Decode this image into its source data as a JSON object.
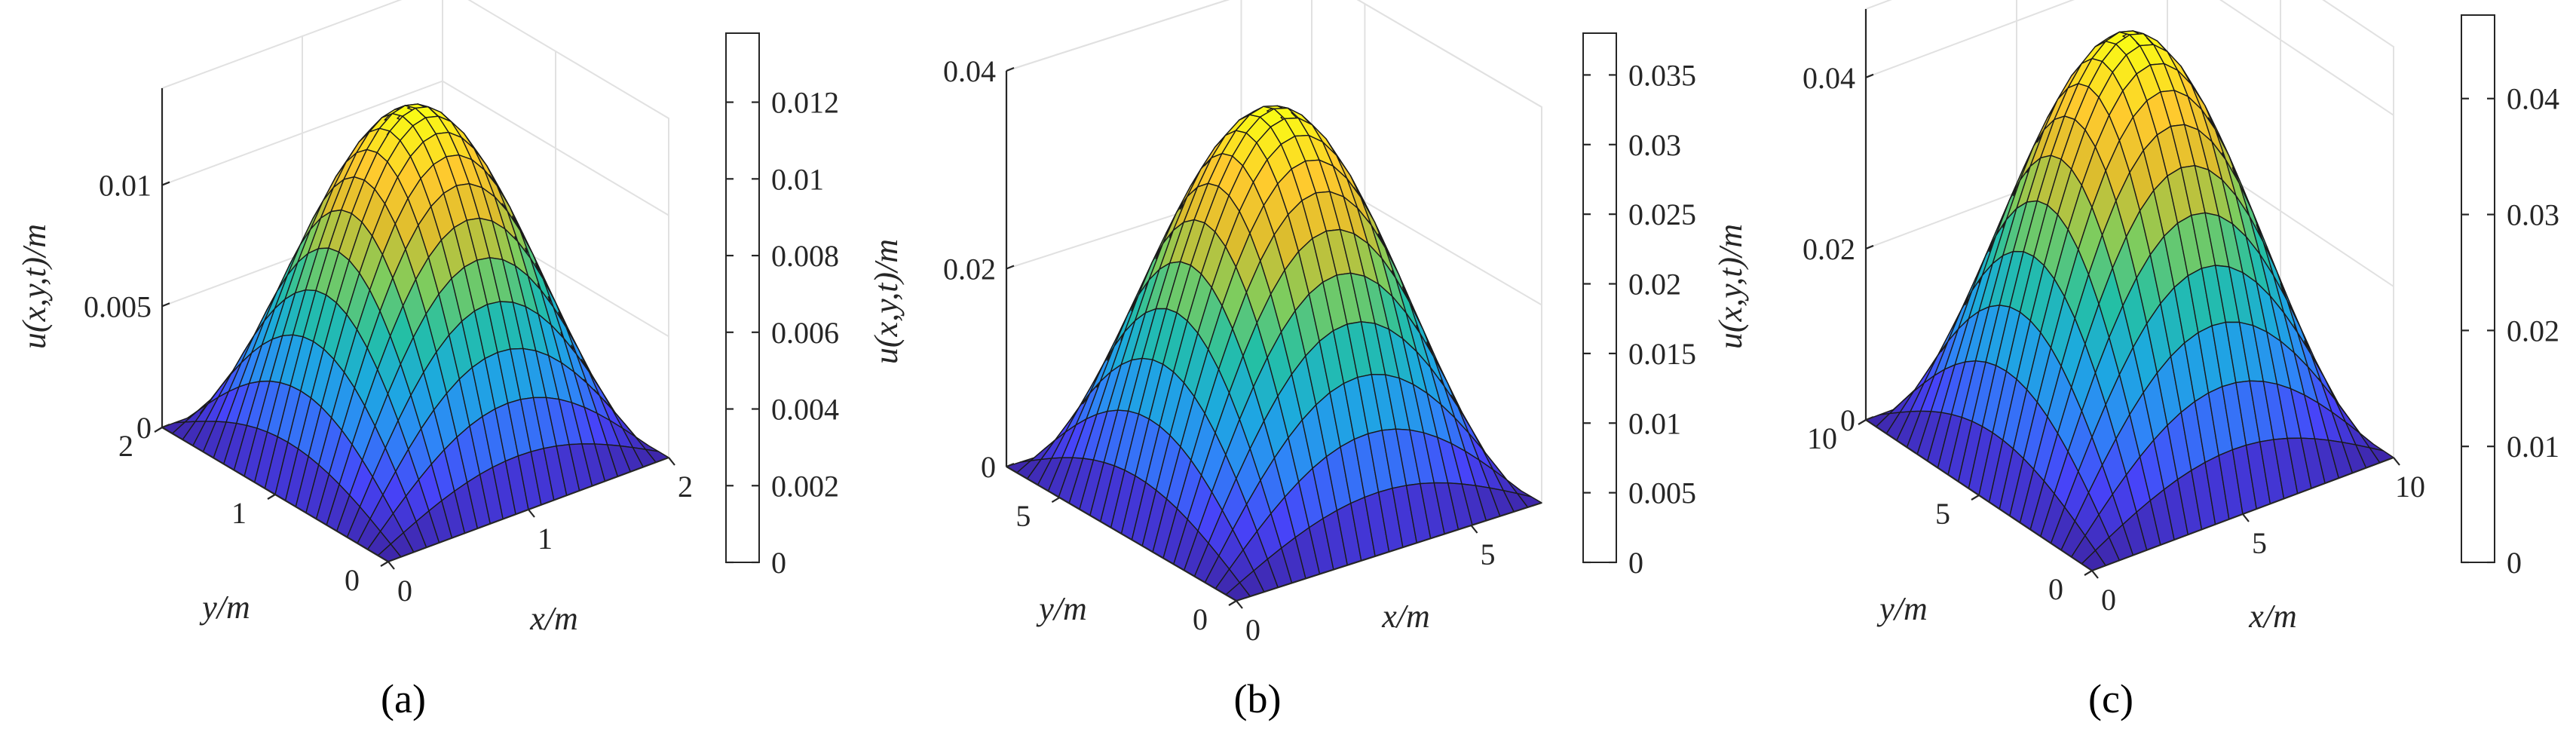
{
  "chart_data": [
    {
      "type": "surface",
      "panel": "a",
      "zlabel": "u(x,y,t)/m",
      "xlabel": "x/m",
      "ylabel": "y/m",
      "xlim": [
        0,
        2
      ],
      "ylim": [
        0,
        2
      ],
      "zmax": 0.0138,
      "zlim": [
        0,
        0.014
      ],
      "x_ticks": [
        "0",
        "1",
        "2"
      ],
      "y_ticks": [
        "0",
        "1",
        "2"
      ],
      "z_ticks": [
        "0",
        "0.005",
        "0.01"
      ],
      "colorbar": {
        "range": [
          0,
          0.0138
        ],
        "ticks": [
          "0",
          "0.002",
          "0.004",
          "0.006",
          "0.008",
          "0.01",
          "0.012"
        ]
      },
      "function": "zmax * sin(pi*x/L) * sin(pi*y/L)"
    },
    {
      "type": "surface",
      "panel": "b",
      "zlabel": "u(x,y,t)/m",
      "xlabel": "x/m",
      "ylabel": "y/m",
      "xlim": [
        0,
        6.5
      ],
      "ylim": [
        0,
        6.5
      ],
      "zmax": 0.038,
      "zlim": [
        0,
        0.04
      ],
      "x_ticks": [
        "0",
        "5"
      ],
      "y_ticks": [
        "0",
        "5"
      ],
      "z_ticks": [
        "0",
        "0.02",
        "0.04"
      ],
      "colorbar": {
        "range": [
          0,
          0.038
        ],
        "ticks": [
          "0",
          "0.005",
          "0.01",
          "0.015",
          "0.02",
          "0.025",
          "0.03",
          "0.035"
        ]
      },
      "function": "zmax * sin(pi*x/L) * sin(pi*y/L)"
    },
    {
      "type": "surface",
      "panel": "c",
      "zlabel": "u(x,y,t)/m",
      "xlabel": "x/m",
      "ylabel": "y/m",
      "xlim": [
        0,
        10
      ],
      "ylim": [
        0,
        10
      ],
      "zmax": 0.0472,
      "zlim": [
        0,
        0.048
      ],
      "x_ticks": [
        "0",
        "5",
        "10"
      ],
      "y_ticks": [
        "0",
        "5",
        "10"
      ],
      "z_ticks": [
        "0",
        "0.02",
        "0.04"
      ],
      "colorbar": {
        "range": [
          0,
          0.0472
        ],
        "ticks": [
          "0",
          "0.01",
          "0.02",
          "0.03",
          "0.04"
        ]
      },
      "function": "zmax * sin(pi*x/L) * sin(pi*y/L)"
    }
  ],
  "panel_labels": [
    "(a)",
    "(b)",
    "(c)"
  ],
  "colormap": [
    "#3e26a8",
    "#4743f8",
    "#2e87f7",
    "#1caadf",
    "#24bfa5",
    "#81cc5b",
    "#dcbd2e",
    "#feca2e",
    "#f9fb15"
  ],
  "edge_color": "#1a1a1a",
  "grid_color": "#e1e1e1"
}
